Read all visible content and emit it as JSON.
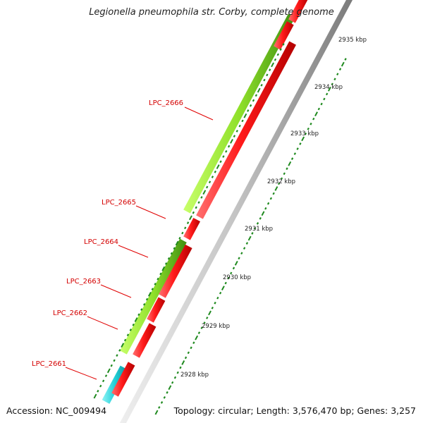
{
  "title": "Legionella pneumophila str. Corby, complete genome",
  "footer": {
    "accession": "Accession: NC_009494",
    "summary": "Topology: circular; Length: 3,576,470 bp; Genes: 3,257"
  },
  "colors": {
    "forward_gene": "#8fe02a",
    "forward_gene_dark": "#3f8f10",
    "reverse_gene": "#ff1a1a",
    "reverse_gene_dark": "#b50000",
    "rna_gene": "#21d0d8",
    "backbone": "#9a9a9a",
    "ticks": "#1f8a1f",
    "gene_label": "#d40000"
  },
  "scale_ticks": [
    "2928 kbp",
    "2929 kbp",
    "2930 kbp",
    "2931 kbp",
    "2932 kbp",
    "2933 kbp",
    "2934 kbp",
    "2935 kbp"
  ],
  "gene_labels": [
    "LPC_2661",
    "LPC_2662",
    "LPC_2663",
    "LPC_2664",
    "LPC_2665",
    "LPC_2666"
  ],
  "icons": {
    "forward_gene": "arrow-up-right",
    "reverse_gene": "arrow-down-left"
  }
}
